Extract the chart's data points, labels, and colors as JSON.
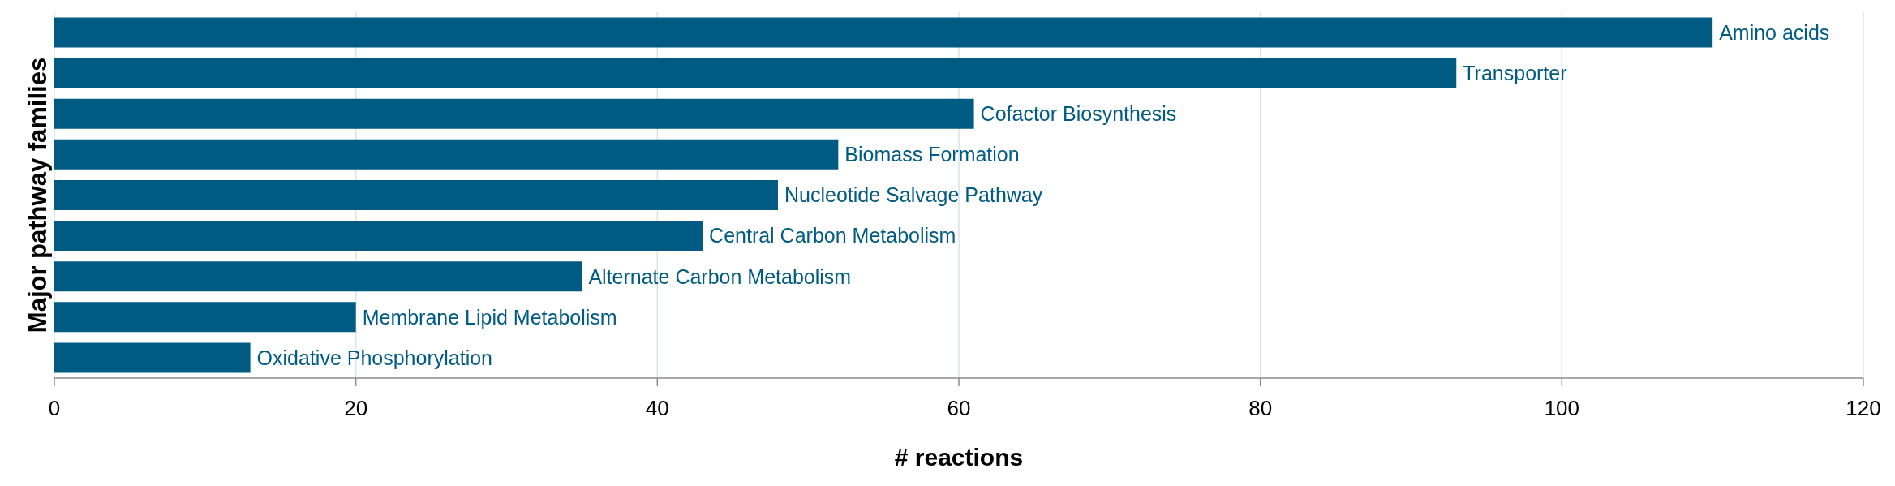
{
  "chart_data": {
    "type": "bar",
    "orientation": "horizontal",
    "xlabel": "# reactions",
    "ylabel": "Major pathway families",
    "categories": [
      "Amino acids",
      "Transporter",
      "Cofactor Biosynthesis",
      "Biomass Formation",
      "Nucleotide Salvage Pathway",
      "Central Carbon Metabolism",
      "Alternate Carbon Metabolism",
      "Membrane Lipid Metabolism",
      "Oxidative Phosphorylation"
    ],
    "values": [
      110,
      93,
      61,
      52,
      48,
      43,
      35,
      20,
      13
    ],
    "color": "#005b82",
    "xlim": [
      0,
      120
    ],
    "xticks": [
      0,
      20,
      40,
      60,
      80,
      100,
      120
    ],
    "grid": "x"
  }
}
